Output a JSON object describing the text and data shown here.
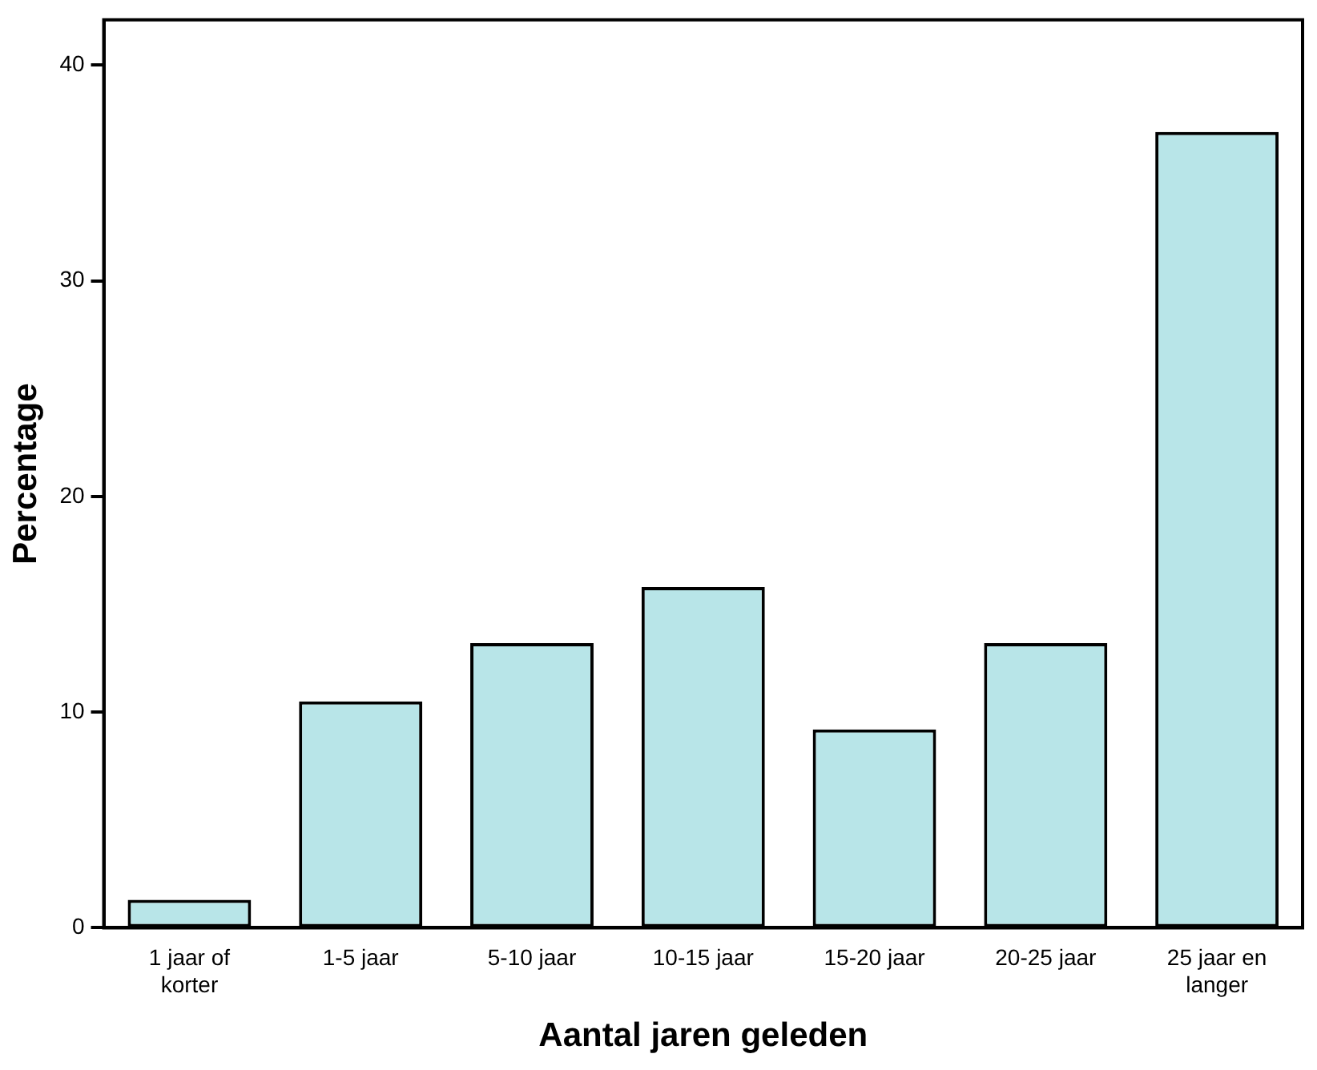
{
  "chart_data": {
    "type": "bar",
    "xlabel": "Aantal jaren geleden",
    "ylabel": "Percentage",
    "categories": [
      "1 jaar of korter",
      "1-5 jaar",
      "5-10 jaar",
      "10-15 jaar",
      "15-20 jaar",
      "20-25 jaar",
      "25 jaar en langer"
    ],
    "values": [
      1.3,
      10.5,
      13.2,
      15.8,
      9.2,
      13.2,
      36.9
    ],
    "color": "#b8e5e8",
    "ylim": [
      0,
      42.1
    ],
    "yticks": [
      0,
      10,
      20,
      30,
      40
    ],
    "grid": false,
    "legend": false
  }
}
